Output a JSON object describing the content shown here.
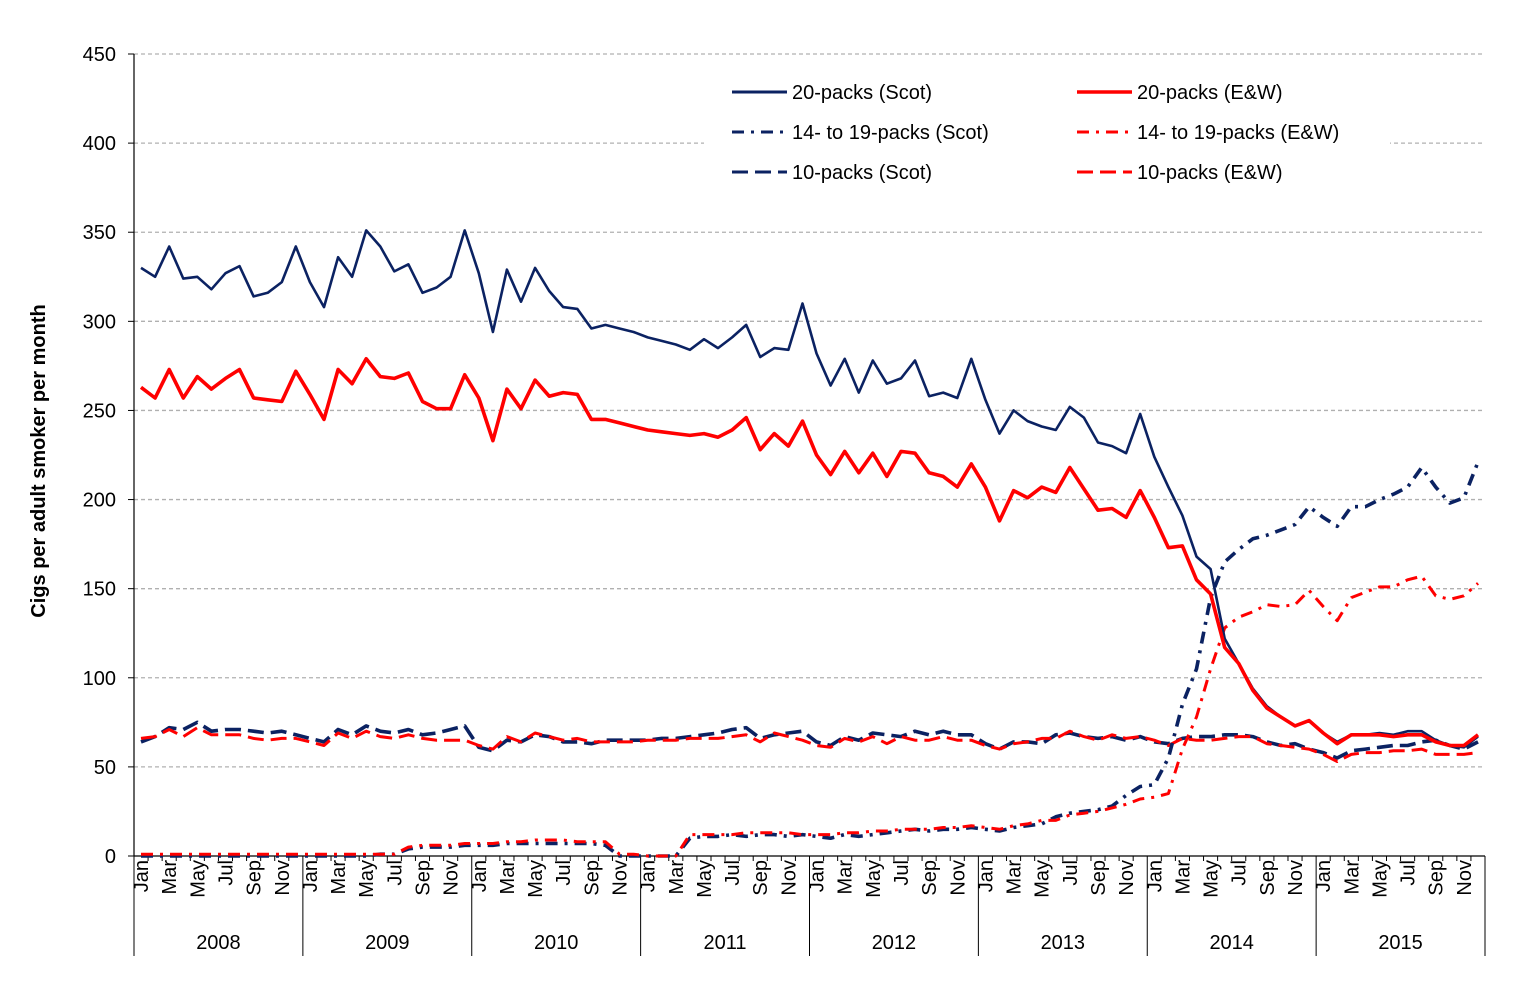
{
  "chart_data": {
    "type": "line",
    "title": "",
    "ylabel": "Cigs per adult smoker per month",
    "xlabel": "",
    "ylim": [
      0,
      450
    ],
    "yticks": [
      0,
      50,
      100,
      150,
      200,
      250,
      300,
      350,
      400,
      450
    ],
    "grid": true,
    "legend_position": "top-right",
    "years": [
      "2008",
      "2009",
      "2010",
      "2011",
      "2012",
      "2013",
      "2014",
      "2015"
    ],
    "month_labels": [
      "Jan",
      "Mar",
      "May",
      "Jul",
      "Sep",
      "Nov"
    ],
    "colors": {
      "scot": "#0b2262",
      "ew": "#ff0000"
    },
    "series": [
      {
        "name": "20-packs (Scot)",
        "style": "solid",
        "region": "scot",
        "values": [
          330,
          325,
          342,
          324,
          325,
          318,
          327,
          331,
          314,
          316,
          322,
          342,
          322,
          308,
          336,
          325,
          351,
          342,
          328,
          332,
          316,
          319,
          325,
          351,
          327,
          294,
          329,
          311,
          330,
          317,
          308,
          307,
          296,
          298,
          296,
          294,
          291,
          289,
          287,
          284,
          290,
          285,
          291,
          298,
          280,
          285,
          284,
          310,
          282,
          264,
          279,
          260,
          278,
          265,
          268,
          278,
          258,
          260,
          257,
          279,
          256,
          237,
          250,
          244,
          241,
          239,
          252,
          246,
          232,
          230,
          226,
          248,
          224,
          207,
          191,
          168,
          161,
          122,
          108,
          94,
          84,
          78,
          73,
          76,
          69,
          64,
          68,
          68,
          69,
          68,
          70,
          70,
          65,
          62,
          61,
          67
        ]
      },
      {
        "name": "20-packs (E&W)",
        "style": "solid",
        "region": "ew",
        "values": [
          263,
          257,
          273,
          257,
          269,
          262,
          268,
          273,
          257,
          256,
          255,
          272,
          259,
          245,
          273,
          265,
          279,
          269,
          268,
          271,
          255,
          251,
          251,
          270,
          257,
          233,
          262,
          251,
          267,
          258,
          260,
          259,
          245,
          245,
          243,
          241,
          239,
          238,
          237,
          236,
          237,
          235,
          239,
          246,
          228,
          237,
          230,
          244,
          225,
          214,
          227,
          215,
          226,
          213,
          227,
          226,
          215,
          213,
          207,
          220,
          207,
          188,
          205,
          201,
          207,
          204,
          218,
          206,
          194,
          195,
          190,
          205,
          190,
          173,
          174,
          155,
          147,
          117,
          108,
          93,
          83,
          78,
          73,
          76,
          69,
          63,
          68,
          68,
          68,
          67,
          68,
          68,
          64,
          62,
          62,
          68
        ]
      },
      {
        "name": "14- to 19-packs (Scot)",
        "style": "dashdot",
        "region": "scot",
        "values": [
          0,
          0,
          0,
          0,
          0,
          0,
          0,
          0,
          0,
          0,
          0,
          0,
          0,
          0,
          0,
          0,
          0,
          1,
          1,
          4,
          5,
          5,
          5,
          6,
          6,
          6,
          7,
          7,
          7,
          7,
          7,
          7,
          7,
          6,
          0,
          0,
          0,
          0,
          0,
          10,
          11,
          11,
          12,
          11,
          12,
          12,
          11,
          12,
          11,
          10,
          12,
          11,
          12,
          13,
          14,
          15,
          14,
          15,
          15,
          16,
          15,
          14,
          16,
          17,
          18,
          22,
          24,
          25,
          26,
          28,
          34,
          39,
          40,
          55,
          85,
          105,
          145,
          165,
          172,
          178,
          180,
          183,
          186,
          196,
          190,
          185,
          196,
          196,
          200,
          203,
          207,
          218,
          207,
          198,
          201,
          221
        ]
      },
      {
        "name": "14- to 19-packs (E&W)",
        "style": "dashdot",
        "region": "ew",
        "values": [
          1,
          1,
          1,
          1,
          1,
          1,
          1,
          1,
          1,
          1,
          1,
          1,
          1,
          1,
          1,
          1,
          1,
          1,
          1,
          5,
          6,
          6,
          6,
          7,
          7,
          7,
          8,
          8,
          9,
          9,
          9,
          8,
          8,
          8,
          1,
          1,
          0,
          0,
          0,
          12,
          12,
          12,
          12,
          13,
          13,
          13,
          13,
          12,
          12,
          12,
          13,
          13,
          14,
          14,
          15,
          15,
          15,
          16,
          16,
          17,
          16,
          15,
          17,
          18,
          20,
          20,
          23,
          24,
          25,
          27,
          29,
          32,
          33,
          35,
          60,
          78,
          105,
          128,
          134,
          137,
          141,
          140,
          141,
          149,
          140,
          132,
          145,
          148,
          151,
          151,
          155,
          157,
          146,
          144,
          146,
          153
        ]
      },
      {
        "name": "10-packs (Scot)",
        "style": "dashed",
        "region": "scot",
        "values": [
          64,
          67,
          72,
          71,
          75,
          70,
          71,
          71,
          70,
          69,
          70,
          68,
          66,
          64,
          71,
          68,
          73,
          70,
          69,
          71,
          68,
          69,
          71,
          73,
          61,
          59,
          65,
          64,
          68,
          67,
          64,
          64,
          63,
          65,
          65,
          65,
          65,
          66,
          66,
          67,
          68,
          69,
          71,
          72,
          66,
          68,
          69,
          70,
          64,
          62,
          67,
          65,
          69,
          68,
          67,
          70,
          68,
          70,
          68,
          68,
          63,
          60,
          64,
          64,
          63,
          68,
          69,
          67,
          66,
          67,
          65,
          67,
          64,
          63,
          66,
          67,
          67,
          68,
          68,
          67,
          64,
          62,
          63,
          60,
          58,
          55,
          59,
          60,
          61,
          62,
          62,
          64,
          65,
          62,
          60,
          64
        ]
      },
      {
        "name": "10-packs (E&W)",
        "style": "dashed",
        "region": "ew",
        "values": [
          66,
          67,
          71,
          67,
          72,
          68,
          68,
          68,
          66,
          65,
          66,
          66,
          64,
          62,
          69,
          66,
          70,
          67,
          66,
          68,
          66,
          65,
          65,
          65,
          62,
          60,
          67,
          64,
          69,
          67,
          65,
          66,
          64,
          64,
          64,
          64,
          65,
          65,
          65,
          66,
          66,
          66,
          67,
          68,
          64,
          69,
          67,
          65,
          62,
          61,
          66,
          64,
          67,
          63,
          67,
          65,
          65,
          67,
          65,
          65,
          62,
          60,
          63,
          64,
          66,
          66,
          70,
          67,
          65,
          68,
          66,
          67,
          65,
          62,
          66,
          65,
          65,
          66,
          67,
          67,
          63,
          62,
          61,
          60,
          57,
          53,
          57,
          58,
          58,
          59,
          59,
          60,
          57,
          57,
          57,
          58
        ]
      }
    ]
  }
}
